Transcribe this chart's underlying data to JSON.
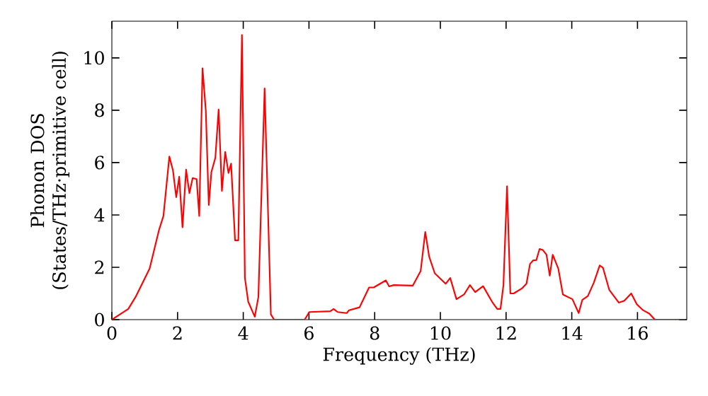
{
  "chart_data": {
    "type": "line",
    "xlabel": "Frequency (THz)",
    "ylabel": "Phonon DOS (States/THz·primitive cell)",
    "x": [
      0,
      0.5,
      0.72,
      1.15,
      1.43,
      1.57,
      1.75,
      1.86,
      1.96,
      2.05,
      2.15,
      2.26,
      2.36,
      2.46,
      2.58,
      2.66,
      2.76,
      2.86,
      2.95,
      3.03,
      3.15,
      3.25,
      3.35,
      3.45,
      3.55,
      3.63,
      3.75,
      3.85,
      3.96,
      4.05,
      4.15,
      4.35,
      4.46,
      4.65,
      4.84,
      4.94,
      5.87,
      6.01,
      6.65,
      6.75,
      6.87,
      7.15,
      7.22,
      7.54,
      7.83,
      7.97,
      8.34,
      8.44,
      8.58,
      9.16,
      9.4,
      9.54,
      9.66,
      9.83,
      10.16,
      10.3,
      10.49,
      10.72,
      10.9,
      11.06,
      11.3,
      11.59,
      11.73,
      11.83,
      11.92,
      12.03,
      12.13,
      12.23,
      12.49,
      12.62,
      12.73,
      12.83,
      12.92,
      13.02,
      13.12,
      13.23,
      13.33,
      13.42,
      13.59,
      13.73,
      14.02,
      14.21,
      14.32,
      14.49,
      14.67,
      14.85,
      14.95,
      15.14,
      15.43,
      15.6,
      15.81,
      15.98,
      16.17,
      16.36,
      16.53,
      17.46
    ],
    "values": [
      0,
      0.41,
      0.86,
      1.95,
      3.4,
      3.96,
      6.23,
      5.7,
      4.68,
      5.46,
      3.53,
      5.73,
      4.83,
      5.41,
      5.37,
      3.96,
      9.6,
      7.98,
      4.38,
      5.64,
      6.18,
      8.03,
      4.92,
      6.41,
      5.6,
      5.96,
      3.03,
      3.03,
      10.88,
      1.59,
      0.69,
      0.11,
      0.86,
      8.83,
      0.2,
      0,
      0,
      0.29,
      0.32,
      0.41,
      0.29,
      0.25,
      0.36,
      0.47,
      1.23,
      1.23,
      1.5,
      1.27,
      1.32,
      1.3,
      1.86,
      3.35,
      2.4,
      1.77,
      1.37,
      1.59,
      0.78,
      0.96,
      1.32,
      1.05,
      1.28,
      0.65,
      0.41,
      0.41,
      1.32,
      5.1,
      1.0,
      1.0,
      1.2,
      1.37,
      2.13,
      2.27,
      2.27,
      2.7,
      2.66,
      2.48,
      1.68,
      2.48,
      1.95,
      0.96,
      0.78,
      0.25,
      0.75,
      0.9,
      1.41,
      2.07,
      1.98,
      1.14,
      0.65,
      0.72,
      1.0,
      0.59,
      0.36,
      0.23,
      0,
      0
    ],
    "color": "#ff0000",
    "xlim": [
      0,
      17.5
    ],
    "ylim": [
      0,
      11.4
    ],
    "xticks": [
      0,
      2,
      4,
      6,
      8,
      10,
      12,
      14,
      16
    ],
    "yticks": [
      0,
      2,
      4,
      6,
      8,
      10
    ],
    "grid": false
  }
}
